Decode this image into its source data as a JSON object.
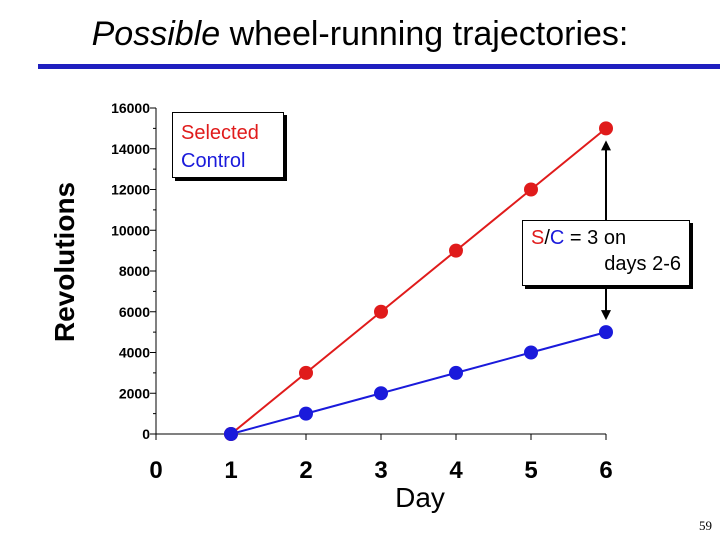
{
  "title": {
    "emphasis": "Possible",
    "rest": "wheel-running trajectories:"
  },
  "slide_number": "59",
  "colors": {
    "selected": "#e01b1b",
    "control": "#1a1adb",
    "title_rule": "#1f1fbf"
  },
  "legend": {
    "selected": "Selected",
    "control": "Control"
  },
  "annotation": {
    "s": "S",
    "slash": "/",
    "c": "C",
    "rest": " = 3 on",
    "line2": "days 2-6"
  },
  "chart_data": {
    "type": "line",
    "title": "Possible wheel-running trajectories:",
    "xlabel": "Day",
    "ylabel": "Revolutions",
    "x": [
      1,
      2,
      3,
      4,
      5,
      6
    ],
    "xlim": [
      0,
      6
    ],
    "ylim": [
      0,
      16000
    ],
    "x_ticks": [
      0,
      1,
      2,
      3,
      4,
      5,
      6
    ],
    "y_ticks": [
      0,
      2000,
      4000,
      6000,
      8000,
      10000,
      12000,
      14000,
      16000
    ],
    "series": [
      {
        "name": "Selected",
        "color": "#e01b1b",
        "values": [
          0,
          3000,
          6000,
          9000,
          12000,
          15000
        ]
      },
      {
        "name": "Control",
        "color": "#1a1adb",
        "values": [
          0,
          1000,
          2000,
          3000,
          4000,
          5000
        ]
      }
    ],
    "grid": false,
    "legend": "top-left"
  }
}
